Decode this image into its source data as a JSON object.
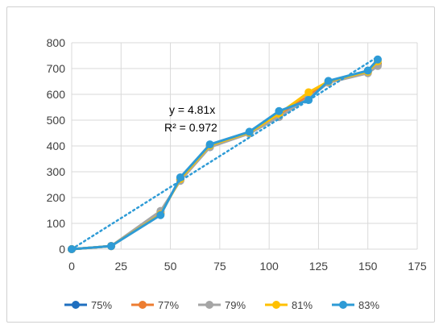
{
  "chart_data": {
    "type": "line",
    "title": "",
    "xlabel": "",
    "ylabel": "",
    "xlim": [
      0,
      175
    ],
    "ylim": [
      0,
      800
    ],
    "x_ticks": [
      0,
      25,
      50,
      75,
      100,
      125,
      150,
      175
    ],
    "y_ticks": [
      0,
      100,
      200,
      300,
      400,
      500,
      600,
      700,
      800
    ],
    "grid": {
      "horizontal": true,
      "vertical": true
    },
    "legend_position": "bottom",
    "annotations": [
      "y = 4.81x",
      "R² = 0.972"
    ],
    "trendline": {
      "type": "linear",
      "slope": 4.81,
      "x_range": [
        0,
        155
      ],
      "color": "#2e9bd6",
      "style": "dotted"
    },
    "series": [
      {
        "name": "75%",
        "color": "#1f6fbf",
        "x": [
          0,
          20,
          45,
          55,
          70,
          90,
          105,
          120,
          130,
          150,
          155
        ],
        "y": [
          0,
          12,
          140,
          270,
          400,
          450,
          520,
          590,
          650,
          688,
          720
        ]
      },
      {
        "name": "77%",
        "color": "#ed7d31",
        "x": [
          0,
          20,
          45,
          55,
          70,
          90,
          105,
          120,
          130,
          150,
          155
        ],
        "y": [
          0,
          12,
          145,
          268,
          398,
          450,
          518,
          595,
          648,
          685,
          715
        ]
      },
      {
        "name": "79%",
        "color": "#a5a5a5",
        "x": [
          0,
          20,
          45,
          55,
          70,
          90,
          105,
          120,
          130,
          150,
          155
        ],
        "y": [
          0,
          12,
          148,
          265,
          395,
          448,
          512,
          585,
          645,
          682,
          710
        ]
      },
      {
        "name": "81%",
        "color": "#ffc000",
        "x": [
          0,
          20,
          45,
          55,
          70,
          90,
          105,
          120,
          130,
          150,
          155
        ],
        "y": [
          0,
          12,
          135,
          272,
          402,
          452,
          525,
          608,
          650,
          688,
          728
        ]
      },
      {
        "name": "83%",
        "color": "#2e9bd6",
        "x": [
          0,
          20,
          45,
          55,
          70,
          90,
          105,
          120,
          130,
          150,
          155
        ],
        "y": [
          0,
          12,
          132,
          278,
          406,
          455,
          535,
          578,
          652,
          692,
          735
        ]
      }
    ]
  }
}
